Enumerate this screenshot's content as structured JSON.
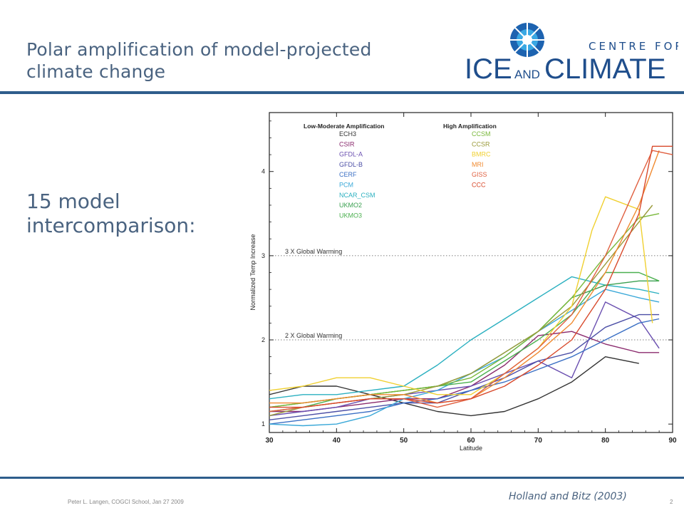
{
  "slide": {
    "title_line1": "Polar amplification of model-projected",
    "title_line2": "climate change",
    "subtitle_line1": "15 model",
    "subtitle_line2": "intercomparison:",
    "footer": "Peter L. Langen, COGCI School, Jan 27 2009",
    "citation": "Holland and Bitz (2003)",
    "page_number": "2"
  },
  "logo": {
    "line1": "CENTRE FOR",
    "ice": "ICE",
    "and": "AND",
    "climate": "CLIMATE",
    "color": "#1f4e8c",
    "accent": "#29a8e0"
  },
  "colors": {
    "title": "#4a6380",
    "rule": "#2e5d8c"
  },
  "chart_data": {
    "type": "line",
    "xlabel": "Latitude",
    "ylabel": "Normalized Temp Increase",
    "xlim": [
      30,
      90
    ],
    "ylim": [
      0.9,
      4.7
    ],
    "xticks": [
      30,
      40,
      50,
      60,
      70,
      80,
      90
    ],
    "yticks": [
      1,
      2,
      3,
      4
    ],
    "legend_titles": {
      "left": "Low-Moderate Amplification",
      "right": "High Amplification"
    },
    "reference_lines": [
      {
        "y": 3,
        "label": "3 X Global Warming"
      },
      {
        "y": 2,
        "label": "2 X Global Warming"
      }
    ],
    "series": [
      {
        "name": "ECH3",
        "group": "left",
        "color": "#333333",
        "x": [
          30,
          35,
          40,
          45,
          50,
          55,
          60,
          65,
          70,
          75,
          80,
          85
        ],
        "y": [
          1.35,
          1.45,
          1.45,
          1.35,
          1.25,
          1.15,
          1.1,
          1.15,
          1.3,
          1.5,
          1.8,
          1.72
        ]
      },
      {
        "name": "CSIR",
        "group": "left",
        "color": "#8b2b6e",
        "x": [
          30,
          35,
          40,
          45,
          50,
          55,
          60,
          65,
          70,
          75,
          80,
          85,
          88
        ],
        "y": [
          1.15,
          1.15,
          1.2,
          1.25,
          1.3,
          1.3,
          1.45,
          1.7,
          2.05,
          2.1,
          1.95,
          1.85,
          1.85
        ]
      },
      {
        "name": "GFDL-A",
        "group": "left",
        "color": "#6a4fb0",
        "x": [
          30,
          35,
          40,
          45,
          50,
          55,
          60,
          65,
          70,
          75,
          80,
          85,
          88
        ],
        "y": [
          1.1,
          1.15,
          1.2,
          1.3,
          1.35,
          1.4,
          1.45,
          1.6,
          1.75,
          1.55,
          2.45,
          2.25,
          1.9
        ]
      },
      {
        "name": "GFDL-B",
        "group": "left",
        "color": "#4c4fa6",
        "x": [
          30,
          35,
          40,
          45,
          50,
          55,
          60,
          65,
          70,
          75,
          80,
          85,
          88
        ],
        "y": [
          1.05,
          1.1,
          1.15,
          1.2,
          1.25,
          1.25,
          1.4,
          1.55,
          1.75,
          1.85,
          2.15,
          2.3,
          2.3
        ]
      },
      {
        "name": "CERF",
        "group": "left",
        "color": "#3a6fc4",
        "x": [
          30,
          35,
          40,
          45,
          50,
          55,
          60,
          65,
          70,
          75,
          80,
          85,
          88
        ],
        "y": [
          1.0,
          1.05,
          1.1,
          1.15,
          1.25,
          1.3,
          1.4,
          1.5,
          1.65,
          1.8,
          2.0,
          2.2,
          2.25
        ]
      },
      {
        "name": "PCM",
        "group": "left",
        "color": "#3aa8d8",
        "x": [
          30,
          35,
          40,
          45,
          50,
          55,
          60,
          65,
          70,
          75,
          80,
          85,
          88
        ],
        "y": [
          1.0,
          0.98,
          1.0,
          1.1,
          1.3,
          1.4,
          1.6,
          1.8,
          2.1,
          2.35,
          2.6,
          2.5,
          2.45
        ]
      },
      {
        "name": "NCAR_CSM",
        "group": "left",
        "color": "#2bb0c0",
        "x": [
          30,
          35,
          40,
          45,
          50,
          55,
          60,
          65,
          70,
          75,
          80,
          85,
          88
        ],
        "y": [
          1.3,
          1.35,
          1.35,
          1.4,
          1.45,
          1.7,
          2.0,
          2.25,
          2.5,
          2.75,
          2.65,
          2.6,
          2.55
        ]
      },
      {
        "name": "UKMO2",
        "group": "left",
        "color": "#3aa050",
        "x": [
          30,
          35,
          40,
          45,
          50,
          55,
          60,
          65,
          70,
          75,
          80,
          85,
          88
        ],
        "y": [
          1.2,
          1.25,
          1.3,
          1.35,
          1.4,
          1.45,
          1.6,
          1.85,
          2.1,
          2.5,
          2.65,
          2.7,
          2.7
        ]
      },
      {
        "name": "UKMO3",
        "group": "left",
        "color": "#4cb050",
        "x": [
          30,
          35,
          40,
          45,
          50,
          55,
          60,
          65,
          70,
          75,
          80,
          85,
          88
        ],
        "y": [
          1.15,
          1.2,
          1.3,
          1.35,
          1.4,
          1.45,
          1.5,
          1.75,
          2.0,
          2.3,
          2.8,
          2.8,
          2.7
        ]
      },
      {
        "name": "CCSM",
        "group": "right",
        "color": "#79b83a",
        "x": [
          30,
          35,
          40,
          45,
          50,
          55,
          60,
          65,
          70,
          75,
          80,
          85,
          88
        ],
        "y": [
          1.2,
          1.25,
          1.3,
          1.35,
          1.4,
          1.45,
          1.55,
          1.8,
          2.1,
          2.5,
          3.0,
          3.45,
          3.5
        ]
      },
      {
        "name": "CCSR",
        "group": "right",
        "color": "#9a9a3a",
        "x": [
          30,
          35,
          40,
          45,
          50,
          55,
          60,
          65,
          70,
          75,
          80,
          85,
          87
        ],
        "y": [
          1.1,
          1.2,
          1.25,
          1.3,
          1.35,
          1.45,
          1.6,
          1.85,
          2.1,
          2.4,
          2.9,
          3.4,
          3.6
        ]
      },
      {
        "name": "BMRC",
        "group": "right",
        "color": "#f0d030",
        "x": [
          30,
          35,
          40,
          45,
          50,
          55,
          60,
          65,
          70,
          75,
          78,
          80,
          85,
          87
        ],
        "y": [
          1.4,
          1.45,
          1.55,
          1.55,
          1.45,
          1.35,
          1.35,
          1.6,
          1.9,
          2.4,
          3.3,
          3.7,
          3.55,
          2.2
        ]
      },
      {
        "name": "MRI",
        "group": "right",
        "color": "#f08a30",
        "x": [
          30,
          35,
          40,
          45,
          50,
          55,
          60,
          65,
          70,
          75,
          80,
          85,
          88
        ],
        "y": [
          1.25,
          1.25,
          1.3,
          1.35,
          1.35,
          1.25,
          1.3,
          1.55,
          1.85,
          2.2,
          2.8,
          3.6,
          4.25
        ]
      },
      {
        "name": "GISS",
        "group": "right",
        "color": "#e06040",
        "x": [
          30,
          35,
          40,
          45,
          50,
          55,
          60,
          65,
          70,
          75,
          80,
          85,
          87,
          90
        ],
        "y": [
          1.15,
          1.2,
          1.25,
          1.3,
          1.3,
          1.2,
          1.3,
          1.6,
          1.9,
          2.3,
          3.0,
          3.9,
          4.25,
          4.2
        ]
      },
      {
        "name": "CCC",
        "group": "right",
        "color": "#d84a2c",
        "x": [
          30,
          35,
          40,
          45,
          50,
          55,
          60,
          65,
          70,
          75,
          80,
          85,
          87,
          90
        ],
        "y": [
          1.2,
          1.2,
          1.25,
          1.3,
          1.3,
          1.25,
          1.3,
          1.45,
          1.7,
          2.0,
          2.6,
          3.5,
          4.3,
          4.3
        ]
      }
    ]
  }
}
